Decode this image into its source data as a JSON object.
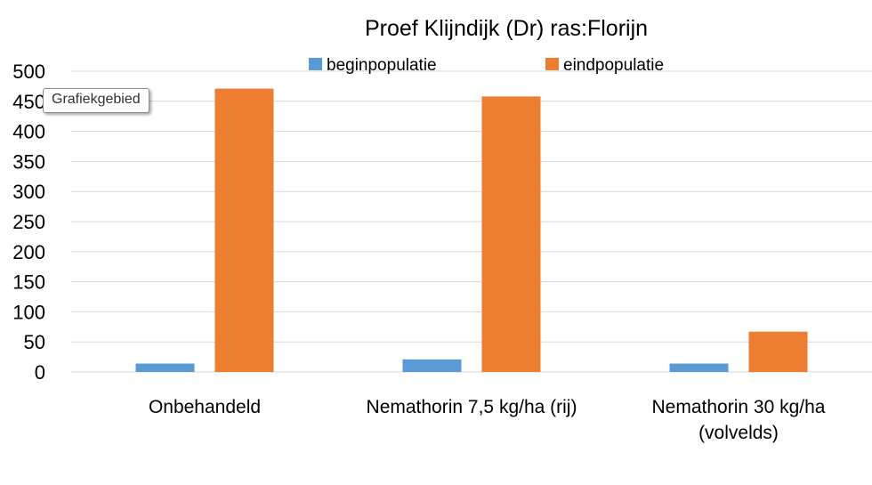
{
  "chart_data": {
    "type": "bar",
    "title": "Proef Klijndijk (Dr) ras:Florijn",
    "categories": [
      "Onbehandeld",
      "Nemathorin 7,5 kg/ha (rij)",
      "Nemathorin 30 kg/ha (volvelds)"
    ],
    "category_lines": [
      [
        "Onbehandeld"
      ],
      [
        "Nemathorin 7,5 kg/ha (rij)"
      ],
      [
        "Nemathorin 30 kg/ha",
        "(volvelds)"
      ]
    ],
    "series": [
      {
        "name": "beginpopulatie",
        "values": [
          14,
          21,
          14
        ],
        "color": "#5b9bd5"
      },
      {
        "name": "eindpopulatie",
        "values": [
          471,
          458,
          67
        ],
        "color": "#ed7d31"
      }
    ],
    "ylim": [
      0,
      500
    ],
    "yticks": [
      0,
      50,
      100,
      150,
      200,
      250,
      300,
      350,
      400,
      450,
      500
    ],
    "grid": true,
    "legend": "top"
  },
  "tooltip": {
    "text": "Grafiekgebied"
  },
  "colors": {
    "grid": "#d9d9d9",
    "text": "#000000"
  }
}
